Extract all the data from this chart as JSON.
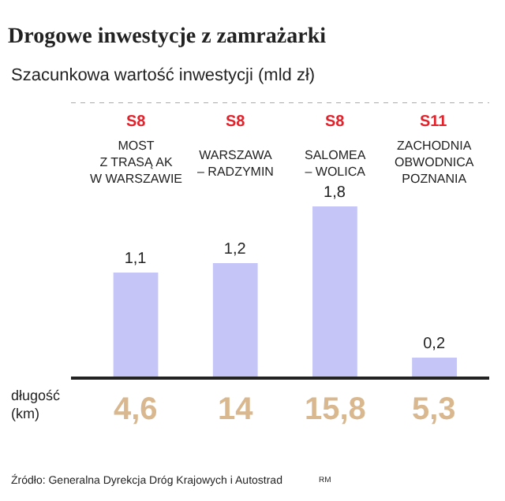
{
  "chart_data": {
    "type": "bar",
    "title": "Drogowe inwestycje z zamrażarki",
    "subtitle": "Szacunkowa wartość inwestycji (mld zł)",
    "categories": [
      "MOST\nZ TRASĄ AK\nW WARSZAWIE",
      "WARSZAWA\n– RADZYMIN",
      "SALOMEA\n– WOLICA",
      "ZACHODNIA\nOBWODNICA\nPOZNANIA"
    ],
    "values": [
      1.1,
      1.2,
      1.8,
      0.2
    ],
    "color": "#c5c6f7",
    "value_labels": [
      "1,1",
      "1,2",
      "1,8",
      "0,2"
    ],
    "ylim": [
      0,
      2.9
    ],
    "annotations": [
      "S8",
      "S8",
      "S8",
      "S11",
      "długość\n(km)",
      "4,6",
      "14",
      "15,8",
      "5,3",
      "Źródło: Generalna Dyrekcja Dróg Krajowych i Autostrad",
      "RM"
    ]
  }
}
